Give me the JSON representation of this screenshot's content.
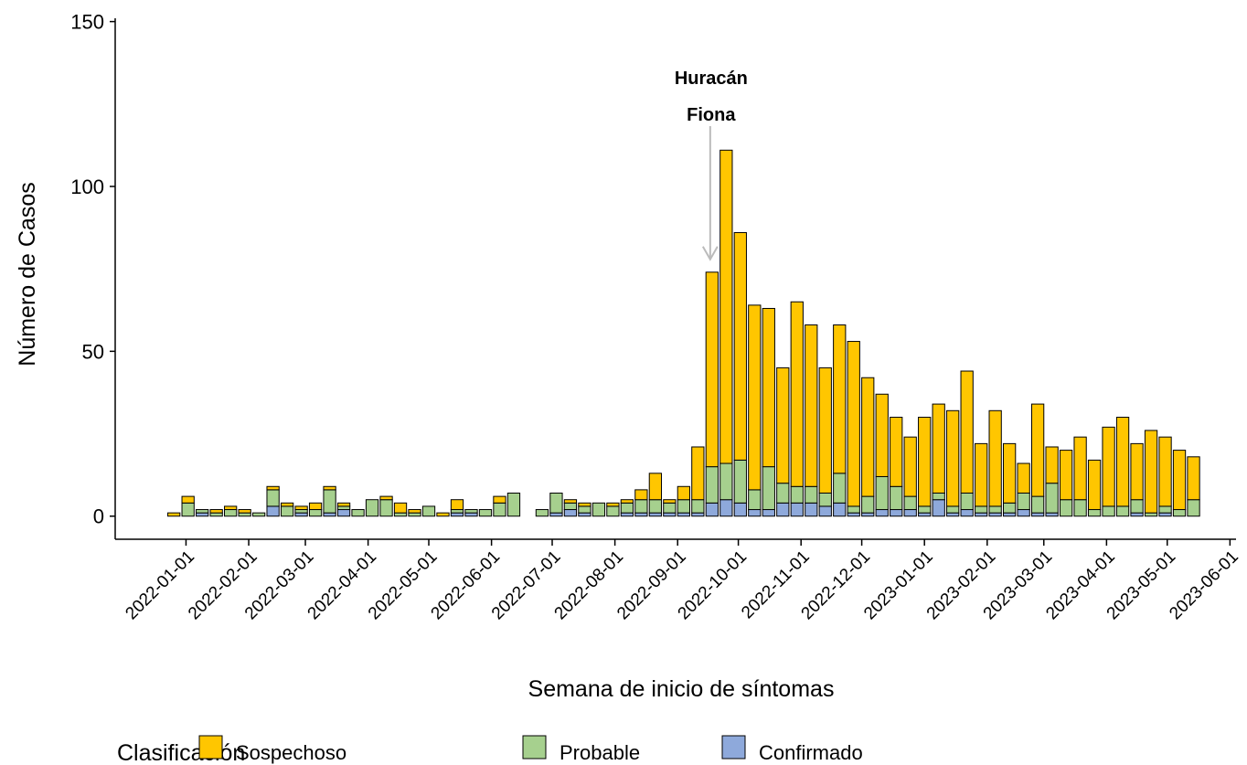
{
  "chart_data": {
    "type": "stacked_bar",
    "x_label": "Semana de inicio de síntomas",
    "y_label": "Número de Casos",
    "legend_title": "Clasificación",
    "legend": "bottom",
    "x": [
      "2021-12-26",
      "2022-01-02",
      "2022-01-09",
      "2022-01-16",
      "2022-01-23",
      "2022-01-30",
      "2022-02-06",
      "2022-02-13",
      "2022-02-20",
      "2022-02-27",
      "2022-03-06",
      "2022-03-13",
      "2022-03-20",
      "2022-03-27",
      "2022-04-03",
      "2022-04-10",
      "2022-04-17",
      "2022-04-24",
      "2022-05-01",
      "2022-05-08",
      "2022-05-15",
      "2022-05-22",
      "2022-05-29",
      "2022-06-05",
      "2022-06-12",
      "2022-06-19",
      "2022-06-26",
      "2022-07-03",
      "2022-07-10",
      "2022-07-17",
      "2022-07-24",
      "2022-07-31",
      "2022-08-07",
      "2022-08-14",
      "2022-08-21",
      "2022-08-28",
      "2022-09-04",
      "2022-09-11",
      "2022-09-18",
      "2022-09-25",
      "2022-10-02",
      "2022-10-09",
      "2022-10-16",
      "2022-10-23",
      "2022-10-30",
      "2022-11-06",
      "2022-11-13",
      "2022-11-20",
      "2022-11-27",
      "2022-12-04",
      "2022-12-11",
      "2022-12-18",
      "2022-12-25",
      "2023-01-01",
      "2023-01-08",
      "2023-01-15",
      "2023-01-22",
      "2023-01-29",
      "2023-02-05",
      "2023-02-12",
      "2023-02-19",
      "2023-02-26",
      "2023-03-05",
      "2023-03-12",
      "2023-03-19",
      "2023-03-26",
      "2023-04-02",
      "2023-04-09",
      "2023-04-16",
      "2023-04-23",
      "2023-04-30",
      "2023-05-07",
      "2023-05-14"
    ],
    "series": [
      {
        "name": "Sospechoso",
        "color": "#ffc600",
        "values": [
          1,
          2,
          0,
          1,
          1,
          1,
          0,
          1,
          1,
          1,
          2,
          1,
          1,
          0,
          0,
          1,
          3,
          1,
          0,
          1,
          3,
          0,
          0,
          2,
          0,
          null,
          0,
          0,
          1,
          1,
          0,
          1,
          1,
          3,
          8,
          1,
          4,
          16,
          59,
          95,
          69,
          56,
          48,
          35,
          56,
          49,
          38,
          45,
          50,
          36,
          25,
          21,
          18,
          27,
          27,
          29,
          37,
          19,
          29,
          18,
          9,
          28,
          11,
          15,
          19,
          15,
          24,
          27,
          17,
          25,
          21,
          18,
          13
        ]
      },
      {
        "name": "Probable",
        "color": "#a6d08e",
        "values": [
          0,
          4,
          1,
          1,
          2,
          1,
          1,
          5,
          3,
          1,
          2,
          7,
          1,
          2,
          5,
          5,
          1,
          1,
          3,
          0,
          1,
          1,
          2,
          4,
          7,
          null,
          2,
          6,
          2,
          2,
          4,
          3,
          3,
          4,
          4,
          3,
          4,
          4,
          11,
          11,
          13,
          6,
          13,
          6,
          5,
          5,
          4,
          9,
          2,
          5,
          10,
          7,
          4,
          2,
          2,
          2,
          5,
          2,
          2,
          3,
          5,
          5,
          9,
          5,
          5,
          2,
          3,
          3,
          4,
          1,
          2,
          2,
          5
        ]
      },
      {
        "name": "Confirmado",
        "color": "#8ea9db",
        "values": [
          0,
          0,
          1,
          0,
          0,
          0,
          0,
          3,
          0,
          1,
          0,
          1,
          2,
          0,
          0,
          0,
          0,
          0,
          0,
          0,
          1,
          1,
          0,
          0,
          0,
          null,
          0,
          1,
          2,
          1,
          0,
          0,
          1,
          1,
          1,
          1,
          1,
          1,
          4,
          5,
          4,
          2,
          2,
          4,
          4,
          4,
          3,
          4,
          1,
          1,
          2,
          2,
          2,
          1,
          5,
          1,
          2,
          1,
          1,
          1,
          2,
          1,
          1,
          0,
          0,
          0,
          0,
          0,
          1,
          0,
          1,
          0,
          0
        ]
      }
    ],
    "annotation": {
      "lines": [
        "Huracán",
        "Fiona"
      ],
      "x": "2022-09-18"
    },
    "xlim": [
      "2021-11-27",
      "2023-06-04"
    ],
    "xticks": [
      "2022-01-01",
      "2022-02-01",
      "2022-03-01",
      "2022-04-01",
      "2022-05-01",
      "2022-06-01",
      "2022-07-01",
      "2022-08-01",
      "2022-09-01",
      "2022-10-01",
      "2022-11-01",
      "2022-12-01",
      "2023-01-01",
      "2023-02-01",
      "2023-03-01",
      "2023-04-01",
      "2023-05-01",
      "2023-06-01"
    ],
    "ylim": [
      -7,
      151
    ],
    "yticks": [
      0,
      50,
      100,
      150
    ]
  }
}
